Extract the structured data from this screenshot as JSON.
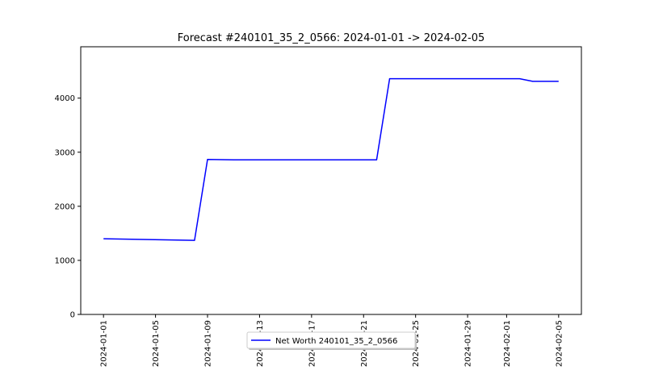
{
  "chart_data": {
    "type": "line",
    "title": "Forecast #240101_35_2_0566: 2024-01-01 -> 2024-02-05",
    "xlabel": "",
    "ylabel": "",
    "xlim": [
      "2024-01-01",
      "2024-02-05"
    ],
    "ylim": [
      0,
      4950
    ],
    "x_ticks": [
      "2024-01-01",
      "2024-01-05",
      "2024-01-09",
      "2024-01-13",
      "2024-01-17",
      "2024-01-21",
      "2024-01-25",
      "2024-01-29",
      "2024-02-01",
      "2024-02-05"
    ],
    "y_ticks": [
      "0",
      "1000",
      "2000",
      "3000",
      "4000"
    ],
    "grid": false,
    "legend": "bottom-center",
    "series": [
      {
        "name": "Net Worth 240101_35_2_0566",
        "color": "#0000ff",
        "x": [
          "2024-01-01",
          "2024-01-08",
          "2024-01-09",
          "2024-01-11",
          "2024-01-22",
          "2024-01-23",
          "2024-02-02",
          "2024-02-03",
          "2024-02-05"
        ],
        "y": [
          1400,
          1370,
          2865,
          2860,
          2860,
          4360,
          4360,
          4310,
          4310
        ]
      }
    ]
  }
}
